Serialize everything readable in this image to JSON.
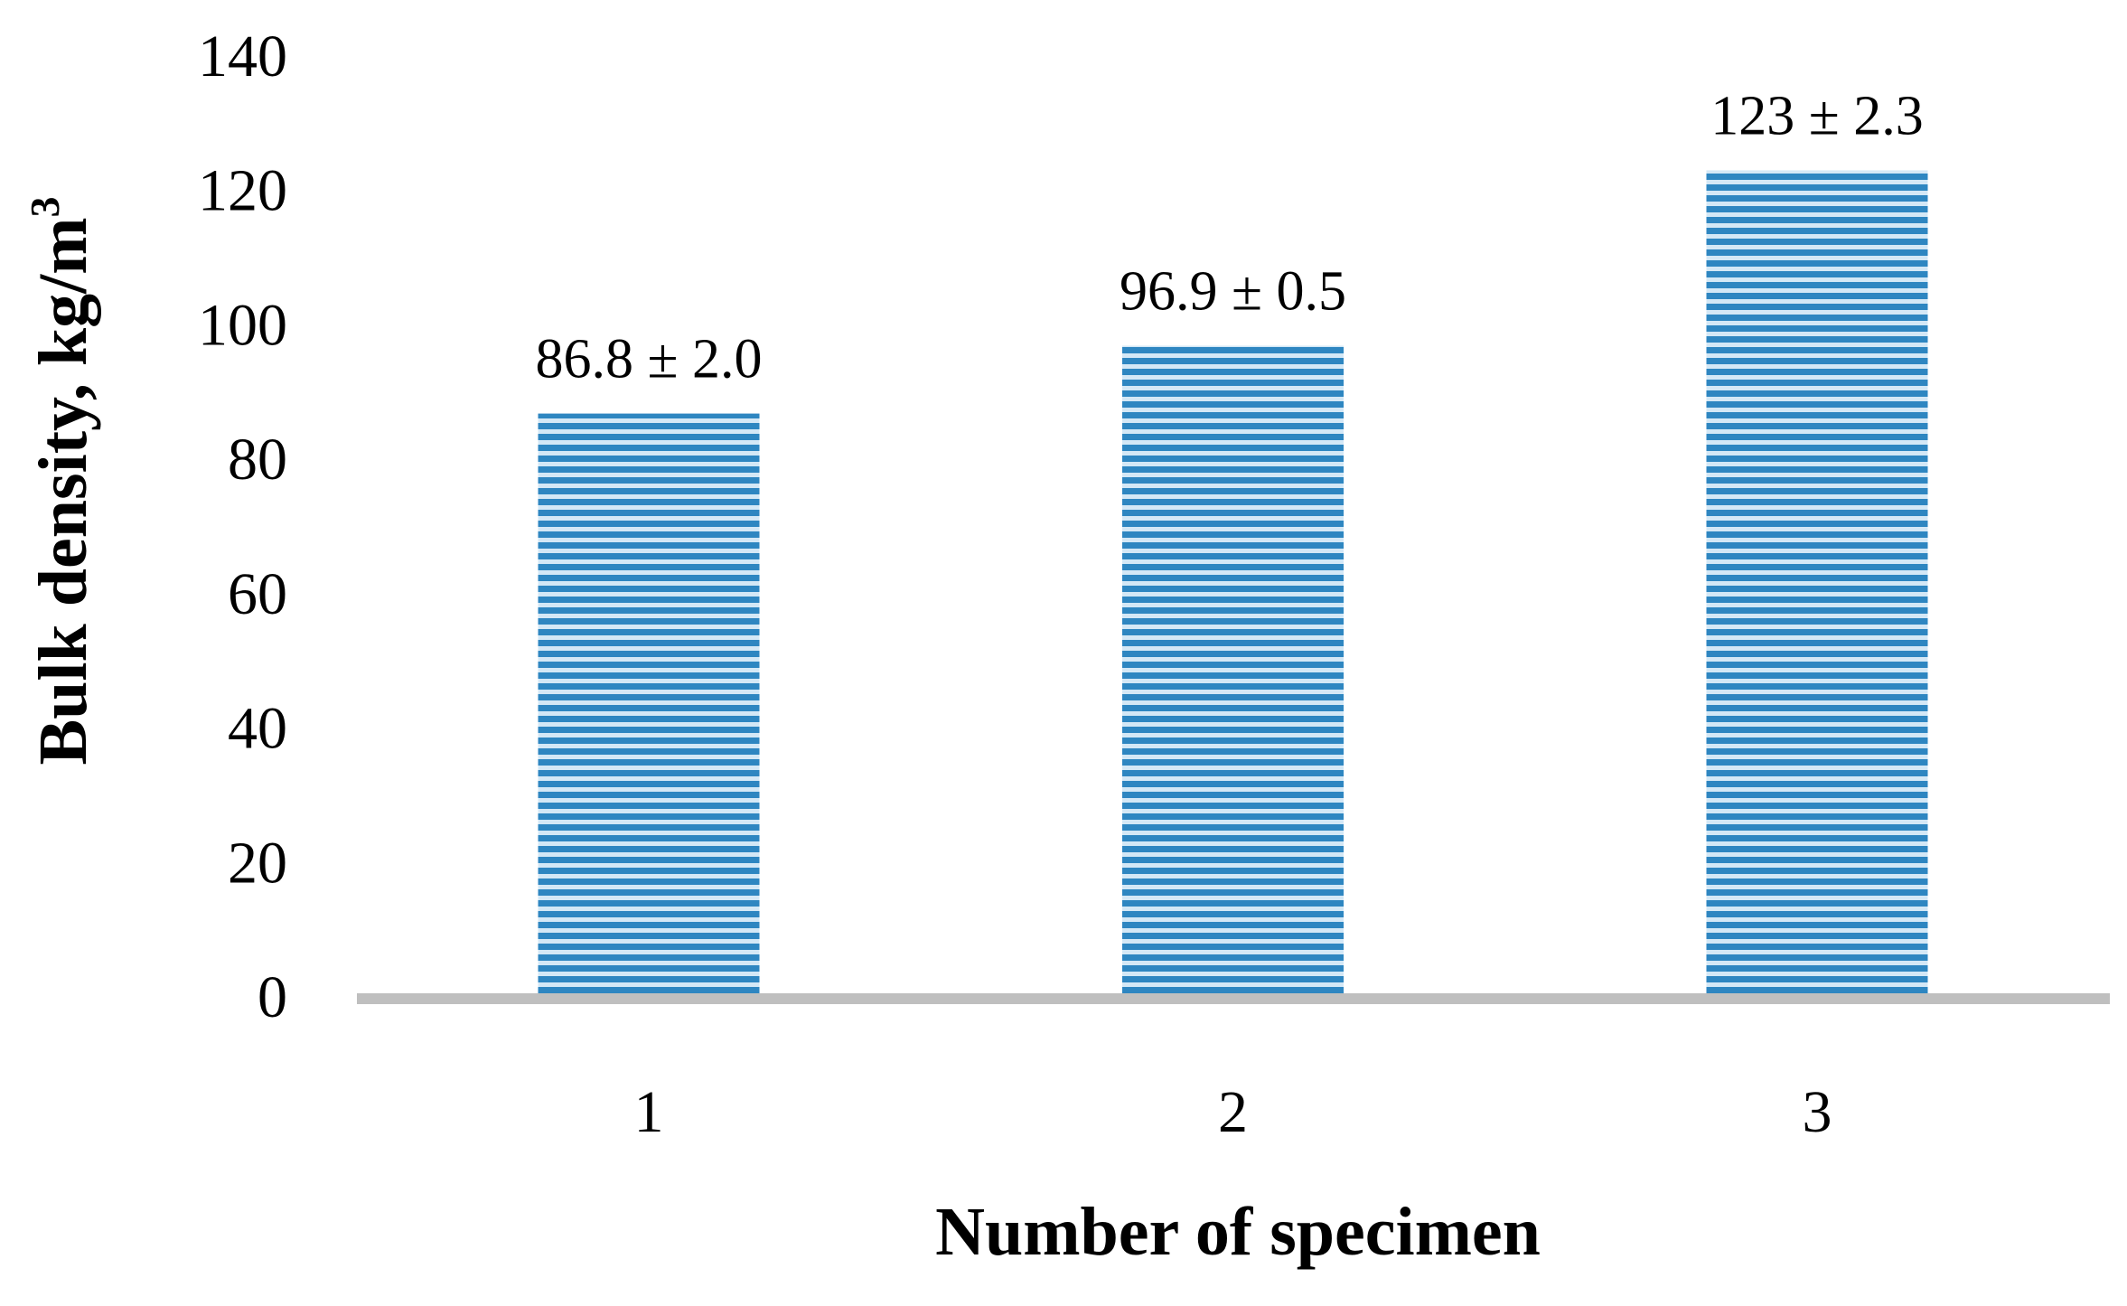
{
  "chart_data": {
    "type": "bar",
    "categories": [
      "1",
      "2",
      "3"
    ],
    "values": [
      86.8,
      96.9,
      123
    ],
    "data_labels": [
      "86.8 ± 2.0",
      "96.9 ± 0.5",
      "123 ± 2.3"
    ],
    "xlabel": "Number of specimen",
    "ylabel": "Bulk density, kg/m",
    "ylabel_superscript": "3",
    "ylim": [
      0,
      140
    ],
    "yticks": [
      "0",
      "20",
      "40",
      "60",
      "80",
      "100",
      "120",
      "140"
    ],
    "grid": false,
    "legend": "none",
    "colors": {
      "bar_stripe_dark": "#2e86c1",
      "bar_stripe_light": "#d4e8f6",
      "baseline": "#bfbfbf",
      "text": "#000000"
    }
  }
}
